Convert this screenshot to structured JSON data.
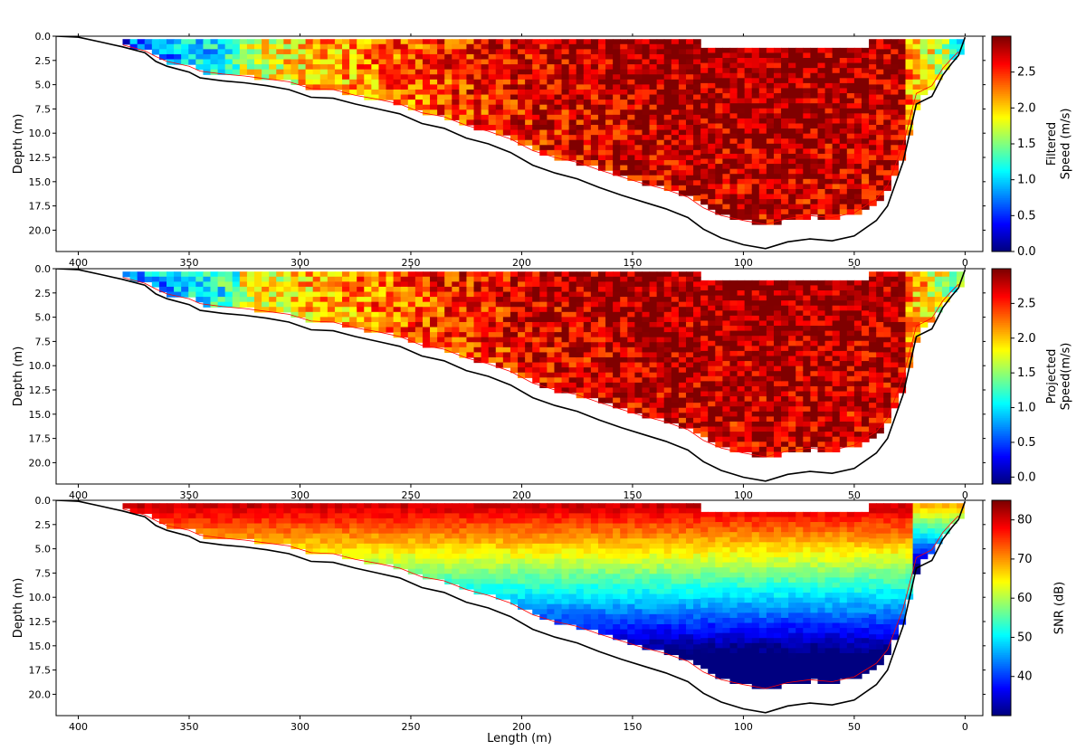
{
  "chart_data": [
    {
      "type": "heatmap",
      "ylabel": "Depth (m)",
      "xlabel": "",
      "xlim": [
        410,
        -8
      ],
      "ylim": [
        22.2,
        0
      ],
      "x_ticks": [
        "400",
        "350",
        "300",
        "250",
        "200",
        "150",
        "100",
        "50",
        "0"
      ],
      "y_ticks": [
        "0.0",
        "2.5",
        "5.0",
        "7.5",
        "10.0",
        "12.5",
        "15.0",
        "17.5",
        "20.0"
      ],
      "colorbar": {
        "label": "Filtered\nSpeed (m/s)",
        "colormap": "jet",
        "range": [
          0.0,
          3.0
        ],
        "ticks": [
          "0.0",
          "0.5",
          "1.0",
          "1.5",
          "2.0",
          "2.5"
        ]
      },
      "field": "speed",
      "grid": false
    },
    {
      "type": "heatmap",
      "ylabel": "Depth (m)",
      "xlabel": "",
      "xlim": [
        410,
        -8
      ],
      "ylim": [
        22.2,
        0
      ],
      "x_ticks": [
        "400",
        "350",
        "300",
        "250",
        "200",
        "150",
        "100",
        "50",
        "0"
      ],
      "y_ticks": [
        "0.0",
        "2.5",
        "5.0",
        "7.5",
        "10.0",
        "12.5",
        "15.0",
        "17.5",
        "20.0"
      ],
      "colorbar": {
        "label": "Projected\nSpeed(m/s)",
        "colormap": "jet",
        "range": [
          -0.1,
          3.0
        ],
        "ticks": [
          "0.0",
          "0.5",
          "1.0",
          "1.5",
          "2.0",
          "2.5"
        ]
      },
      "field": "speed",
      "grid": false
    },
    {
      "type": "heatmap",
      "ylabel": "Depth (m)",
      "xlabel": "Length (m)",
      "xlim": [
        410,
        -8
      ],
      "ylim": [
        22.2,
        0
      ],
      "x_ticks": [
        "400",
        "350",
        "300",
        "250",
        "200",
        "150",
        "100",
        "50",
        "0"
      ],
      "y_ticks": [
        "0.0",
        "2.5",
        "5.0",
        "7.5",
        "10.0",
        "12.5",
        "15.0",
        "17.5",
        "20.0"
      ],
      "colorbar": {
        "label": "SNR (dB)",
        "colormap": "jet",
        "range": [
          30,
          85
        ],
        "ticks": [
          "40",
          "50",
          "60",
          "70",
          "80"
        ]
      },
      "field": "snr",
      "grid": false
    }
  ],
  "profile": {
    "bed_depth": [
      [
        410,
        0
      ],
      [
        400,
        0.1
      ],
      [
        390,
        0.6
      ],
      [
        380,
        1.1
      ],
      [
        370,
        1.7
      ],
      [
        365,
        2.6
      ],
      [
        360,
        3.1
      ],
      [
        350,
        3.7
      ],
      [
        345,
        4.3
      ],
      [
        335,
        4.6
      ],
      [
        325,
        4.8
      ],
      [
        315,
        5.1
      ],
      [
        305,
        5.5
      ],
      [
        295,
        6.3
      ],
      [
        285,
        6.4
      ],
      [
        275,
        7.0
      ],
      [
        265,
        7.5
      ],
      [
        255,
        8.0
      ],
      [
        245,
        9.0
      ],
      [
        235,
        9.5
      ],
      [
        225,
        10.5
      ],
      [
        215,
        11.1
      ],
      [
        205,
        12.0
      ],
      [
        195,
        13.3
      ],
      [
        185,
        14.1
      ],
      [
        175,
        14.7
      ],
      [
        165,
        15.6
      ],
      [
        155,
        16.4
      ],
      [
        145,
        17.1
      ],
      [
        135,
        17.8
      ],
      [
        125,
        18.7
      ],
      [
        118,
        19.9
      ],
      [
        110,
        20.8
      ],
      [
        100,
        21.5
      ],
      [
        90,
        21.9
      ],
      [
        80,
        21.2
      ],
      [
        70,
        20.9
      ],
      [
        60,
        21.1
      ],
      [
        50,
        20.6
      ],
      [
        40,
        19.0
      ],
      [
        35,
        17.5
      ],
      [
        28,
        13.0
      ],
      [
        22,
        7.0
      ],
      [
        15,
        6.2
      ],
      [
        10,
        4.0
      ],
      [
        6,
        2.8
      ],
      [
        3,
        2.0
      ],
      [
        0,
        0.1
      ]
    ],
    "measurement_limit_depth": [
      [
        380,
        0.9
      ],
      [
        370,
        1.5
      ],
      [
        365,
        2.1
      ],
      [
        360,
        2.6
      ],
      [
        350,
        3.1
      ],
      [
        345,
        3.6
      ],
      [
        335,
        3.9
      ],
      [
        325,
        4.1
      ],
      [
        315,
        4.4
      ],
      [
        305,
        4.7
      ],
      [
        295,
        5.4
      ],
      [
        285,
        5.5
      ],
      [
        275,
        6.1
      ],
      [
        265,
        6.5
      ],
      [
        255,
        7.0
      ],
      [
        245,
        7.9
      ],
      [
        235,
        8.3
      ],
      [
        225,
        9.2
      ],
      [
        215,
        9.8
      ],
      [
        205,
        10.6
      ],
      [
        195,
        11.8
      ],
      [
        185,
        12.5
      ],
      [
        175,
        13.0
      ],
      [
        165,
        13.8
      ],
      [
        155,
        14.5
      ],
      [
        145,
        15.2
      ],
      [
        135,
        15.8
      ],
      [
        125,
        16.6
      ],
      [
        118,
        17.7
      ],
      [
        110,
        18.5
      ],
      [
        100,
        19.0
      ],
      [
        90,
        19.4
      ],
      [
        80,
        18.8
      ],
      [
        70,
        18.5
      ],
      [
        60,
        18.7
      ],
      [
        50,
        18.2
      ],
      [
        40,
        16.8
      ],
      [
        35,
        15.4
      ],
      [
        28,
        11.2
      ],
      [
        22,
        5.9
      ],
      [
        15,
        5.1
      ],
      [
        10,
        3.3
      ],
      [
        6,
        2.3
      ],
      [
        3,
        1.6
      ]
    ]
  }
}
